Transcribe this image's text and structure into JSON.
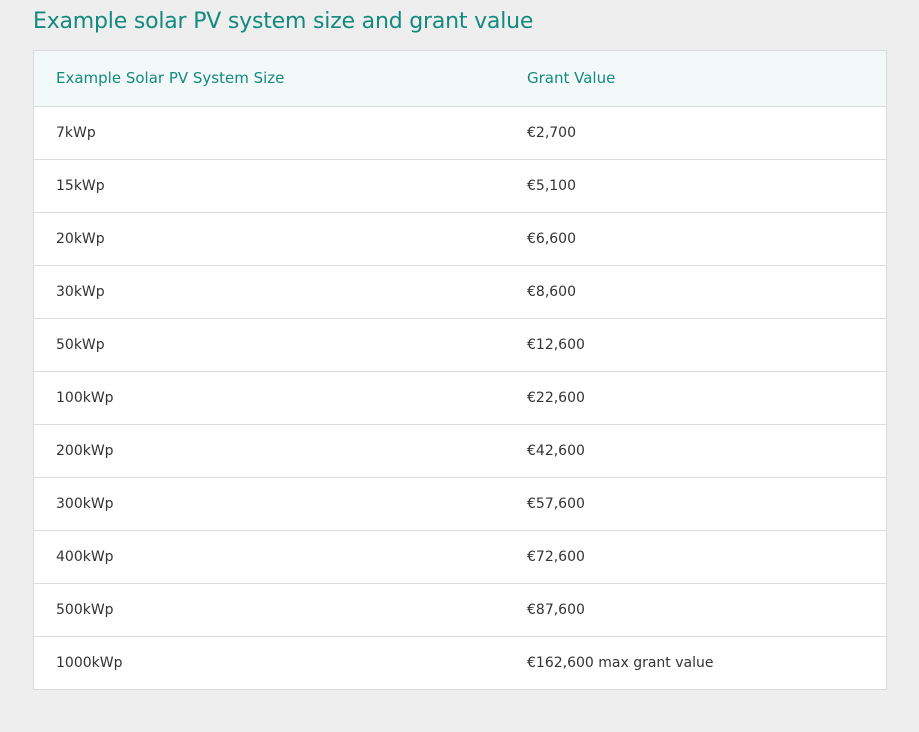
{
  "page": {
    "title": "Example solar PV system size and grant value"
  },
  "table": {
    "headers": [
      "Example Solar PV System Size",
      "Grant Value"
    ],
    "rows": [
      [
        "7kWp",
        "€2,700"
      ],
      [
        "15kWp",
        "€5,100"
      ],
      [
        "20kWp",
        "€6,600"
      ],
      [
        "30kWp",
        "€8,600"
      ],
      [
        "50kWp",
        "€12,600"
      ],
      [
        "100kWp",
        "€22,600"
      ],
      [
        "200kWp",
        "€42,600"
      ],
      [
        "300kWp",
        "€57,600"
      ],
      [
        "400kWp",
        "€72,600"
      ],
      [
        "500kWp",
        "€87,600"
      ],
      [
        "1000kWp",
        "€162,600 max grant value"
      ]
    ]
  },
  "colors": {
    "accent": "#138a7e",
    "header_background": "#f3f9f9",
    "page_background": "#eeeeee",
    "text": "#333333",
    "border": "#dadada"
  }
}
